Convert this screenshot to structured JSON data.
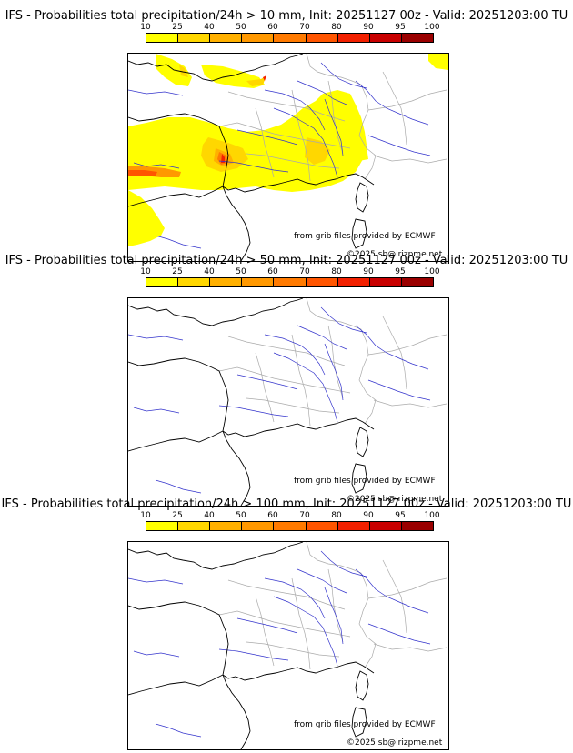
{
  "panels": [
    {
      "title": "IFS - Probabilities total precipitation/24h > 10 mm, Init: 20251127 00z - Valid: 20251203:00 TU",
      "has_precip": true
    },
    {
      "title": "IFS - Probabilities total precipitation/24h > 50 mm, Init: 20251127 00z - Valid: 20251203:00 TU",
      "has_precip": false
    },
    {
      "title": "IFS - Probabilities total precipitation/24h > 100 mm, Init: 20251127 00z - Valid: 20251203:00 TU",
      "has_precip": false
    }
  ],
  "colorbar": {
    "ticks": [
      "10",
      "25",
      "40",
      "50",
      "60",
      "70",
      "80",
      "90",
      "95",
      "100"
    ],
    "colors": [
      "#ffff00",
      "#ffd700",
      "#ffb000",
      "#ff9800",
      "#ff7a00",
      "#ff5500",
      "#f22000",
      "#c80000",
      "#9a0000",
      "#6a0000"
    ]
  },
  "credits": {
    "source": "from grib files provided by ECMWF",
    "copyright": "©2025 sb@irizpme.net"
  },
  "colors": {
    "coast": "#000000",
    "rivers": "#3333cc",
    "borders": "#aaaaaa"
  }
}
